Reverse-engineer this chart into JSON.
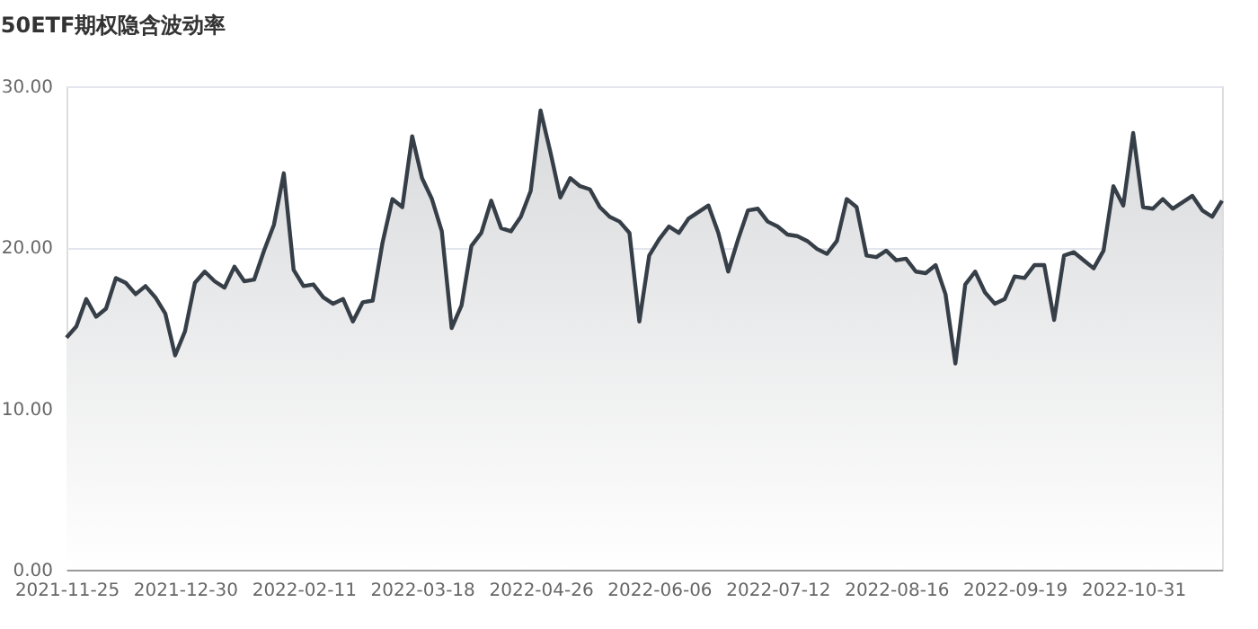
{
  "chart_data": {
    "type": "area",
    "title": "50ETF期权隐含波动率",
    "categories": [
      "2021-11-25",
      null,
      null,
      null,
      null,
      null,
      null,
      null,
      null,
      null,
      null,
      null,
      "2021-12-30",
      null,
      null,
      null,
      null,
      null,
      null,
      null,
      null,
      null,
      null,
      null,
      "2022-02-11",
      null,
      null,
      null,
      null,
      null,
      null,
      null,
      null,
      null,
      null,
      null,
      "2022-03-18",
      null,
      null,
      null,
      null,
      null,
      null,
      null,
      null,
      null,
      null,
      null,
      "2022-04-26",
      null,
      null,
      null,
      null,
      null,
      null,
      null,
      null,
      null,
      null,
      null,
      "2022-06-06",
      null,
      null,
      null,
      null,
      null,
      null,
      null,
      null,
      null,
      null,
      null,
      "2022-07-12",
      null,
      null,
      null,
      null,
      null,
      null,
      null,
      null,
      null,
      null,
      null,
      "2022-08-16",
      null,
      null,
      null,
      null,
      null,
      null,
      null,
      null,
      null,
      null,
      null,
      "2022-09-19",
      null,
      null,
      null,
      null,
      null,
      null,
      null,
      null,
      null,
      null,
      null,
      "2022-10-31",
      null,
      null,
      null,
      null,
      null,
      null,
      null,
      null,
      null
    ],
    "series": [
      {
        "color": "#363e47",
        "values": [
          14.4,
          15.1,
          16.8,
          15.7,
          16.2,
          18.1,
          17.8,
          17.1,
          17.6,
          16.9,
          15.9,
          13.3,
          14.8,
          17.8,
          18.5,
          17.9,
          17.5,
          18.8,
          17.9,
          18.0,
          19.8,
          21.4,
          24.6,
          18.6,
          17.6,
          17.7,
          16.9,
          16.5,
          16.8,
          15.4,
          16.6,
          16.7,
          20.3,
          23.0,
          22.5,
          26.9,
          24.3,
          23.0,
          21.0,
          15.0,
          16.4,
          20.1,
          20.9,
          22.9,
          21.2,
          21.0,
          21.9,
          23.5,
          28.5,
          25.9,
          23.1,
          24.3,
          23.8,
          23.6,
          22.5,
          21.9,
          21.6,
          20.9,
          15.4,
          19.5,
          20.5,
          21.3,
          20.9,
          21.8,
          22.2,
          22.6,
          20.9,
          18.5,
          20.5,
          22.3,
          22.4,
          21.6,
          21.3,
          20.8,
          20.7,
          20.4,
          19.9,
          19.6,
          20.4,
          23.0,
          22.5,
          19.5,
          19.4,
          19.8,
          19.2,
          19.3,
          18.5,
          18.4,
          18.9,
          17.1,
          12.8,
          17.7,
          18.5,
          17.2,
          16.5,
          16.8,
          18.2,
          18.1,
          18.9,
          18.9,
          15.5,
          19.5,
          19.7,
          19.2,
          18.7,
          19.8,
          23.8,
          22.6,
          27.1,
          22.5,
          22.4,
          23.0,
          22.4,
          22.8,
          23.2,
          22.3,
          21.9,
          22.9
        ]
      }
    ],
    "ylim": [
      0,
      30
    ],
    "yticks": [
      {
        "value": 0,
        "label": "0.00"
      },
      {
        "value": 10,
        "label": "10.00"
      },
      {
        "value": 20,
        "label": "20.00"
      },
      {
        "value": 30,
        "label": "30.00"
      }
    ],
    "grid": "y"
  }
}
